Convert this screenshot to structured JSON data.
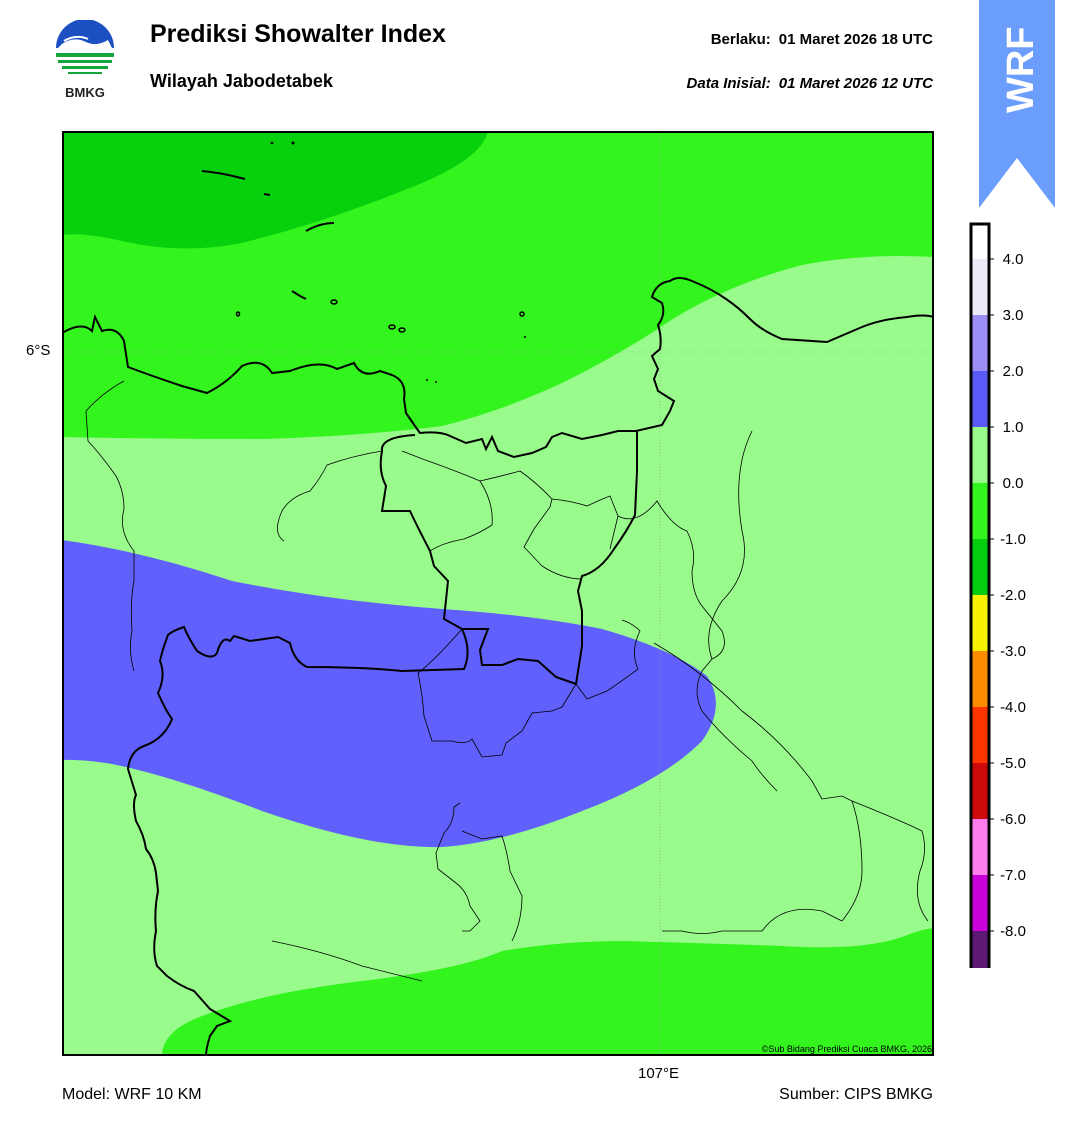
{
  "header": {
    "logo_text": "BMKG",
    "title": "Prediksi Showalter Index",
    "subtitle": "Wilayah Jabodetabek",
    "valid_label": "Berlaku:",
    "valid_time": "01 Maret 2026 18 UTC",
    "init_label": "Data Inisial:",
    "init_time": "01 Maret 2026 12 UTC",
    "badge": "WRF"
  },
  "map": {
    "lat_label": "6°S",
    "lon_label": "107°E",
    "copyright": "©Sub Bidang Prediksi Cuaca BMKG, 2026"
  },
  "footer": {
    "model": "Model: WRF 10 KM",
    "source": "Sumber: CIPS BMKG"
  },
  "legend": {
    "ticks": [
      "4.0",
      "3.0",
      "2.0",
      "1.0",
      "0.0",
      "-1.0",
      "-2.0",
      "-3.0",
      "-4.0",
      "-5.0",
      "-6.0",
      "-7.0",
      "-8.0"
    ],
    "bins": [
      {
        "color": "#ebebfa"
      },
      {
        "color": "#9b8ff5"
      },
      {
        "color": "#5a5af7"
      },
      {
        "color": "#98fb8c"
      },
      {
        "color": "#33f51d"
      },
      {
        "color": "#05ce10"
      },
      {
        "color": "#f7f200"
      },
      {
        "color": "#fd8c00"
      },
      {
        "color": "#ff3500"
      },
      {
        "color": "#cc0a0a"
      },
      {
        "color": "#ff7ded"
      },
      {
        "color": "#c900d8"
      },
      {
        "color": "#5c1873"
      }
    ]
  },
  "colors": {
    "dark_green": "#07d10d",
    "green": "#33f51d",
    "light_green": "#98fb8c",
    "blue": "#6060fc",
    "badge_blue": "#6b9dfd"
  }
}
